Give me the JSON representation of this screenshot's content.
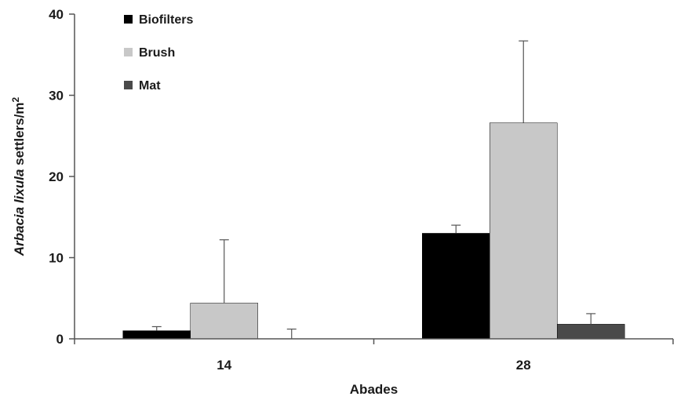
{
  "chart_data": {
    "type": "bar",
    "title": "",
    "xlabel": "Abades",
    "ylabel_italic": "Arbacia lixula",
    "ylabel_rest": " settlers/m",
    "ylabel_sup": "2",
    "categories": [
      "14",
      "28"
    ],
    "ylim": [
      0,
      40
    ],
    "yticks": [
      0,
      10,
      20,
      30,
      40
    ],
    "grid": false,
    "legend_position": "top-left",
    "series": [
      {
        "name": "Biofilters",
        "color": "#000000",
        "values": [
          1.0,
          13.0
        ],
        "errors": [
          0.5,
          1.0
        ]
      },
      {
        "name": "Brush",
        "color": "#c8c8c8",
        "values": [
          4.4,
          26.6
        ],
        "errors": [
          7.8,
          10.1
        ]
      },
      {
        "name": "Mat",
        "color": "#4a4a4a",
        "values": [
          0.0,
          1.8
        ],
        "errors": [
          1.2,
          1.3
        ]
      }
    ]
  }
}
